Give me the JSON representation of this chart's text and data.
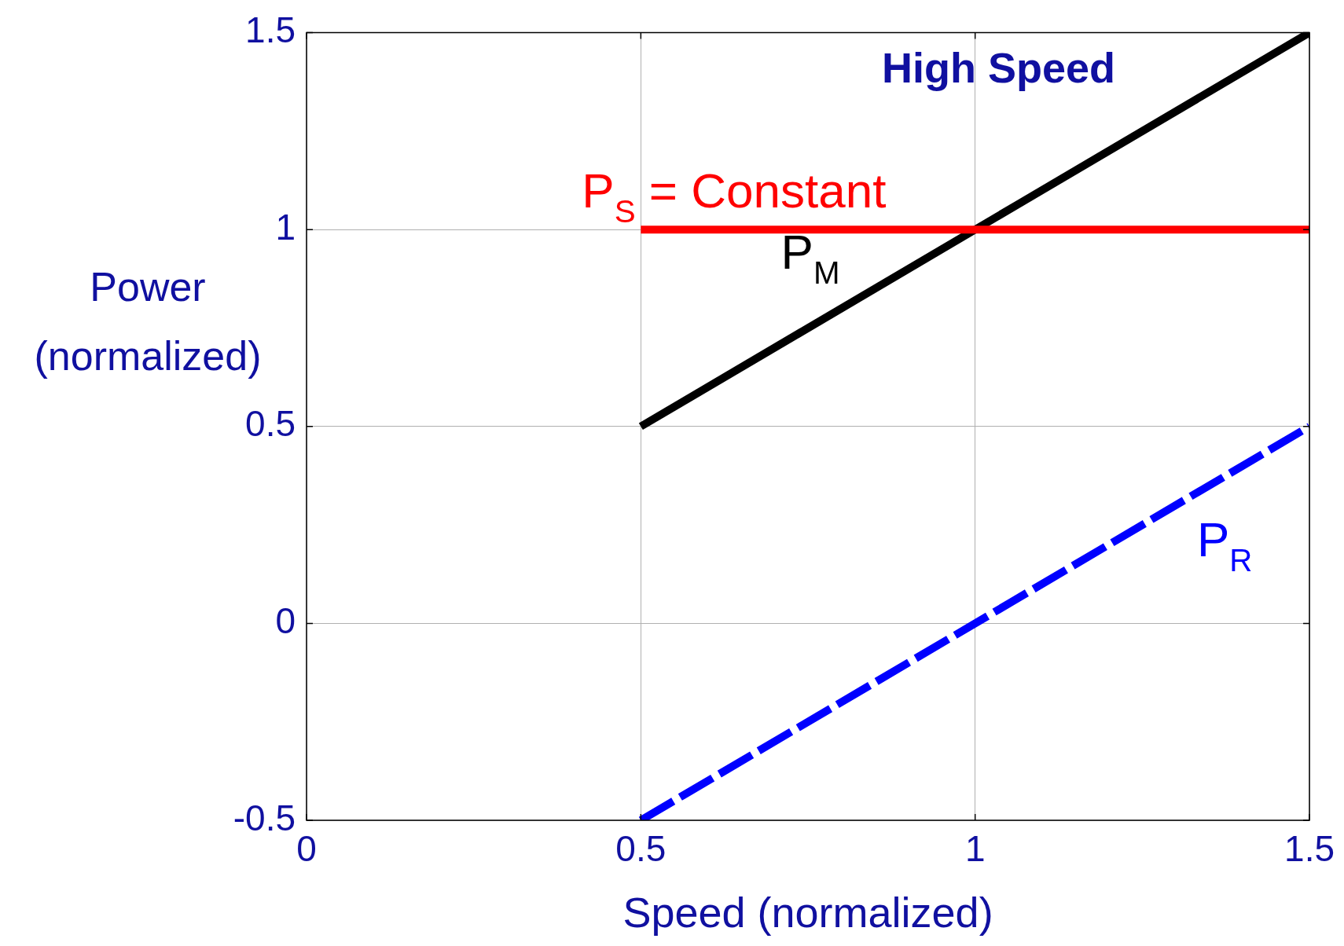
{
  "chart_data": {
    "type": "line",
    "title": "High Speed",
    "xlabel": "Speed (normalized)",
    "ylabel": "Power (normalized)",
    "x": [
      0.5,
      1.5
    ],
    "series": [
      {
        "name": "P$_{S}$ = Constant",
        "color": "#ff0000",
        "values": [
          1,
          1
        ],
        "line_style": "solid"
      },
      {
        "name": "P$_{M}$",
        "color": "#000000",
        "values": [
          0.5,
          1.5
        ],
        "line_style": "solid"
      },
      {
        "name": "P$_{R}$",
        "color": "#0000ff",
        "values": [
          -0.5,
          0.5
        ],
        "line_style": "dashed"
      }
    ],
    "xlim": [
      0,
      1.5
    ],
    "xticks": [
      0,
      0.5,
      1,
      1.5
    ],
    "ylim": [
      -0.5,
      1.5
    ],
    "yticks": [
      -0.5,
      0,
      0.5,
      1,
      1.5
    ],
    "grid": true,
    "legend": false,
    "marker": "none"
  }
}
